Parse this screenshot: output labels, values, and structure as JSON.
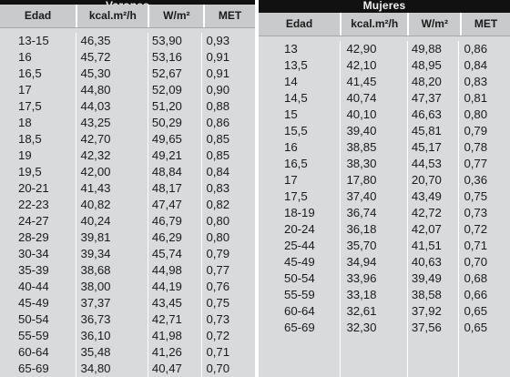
{
  "varones": {
    "title": "Varones",
    "headers": [
      "Edad",
      "kcal.m²/h",
      "W/m²",
      "MET"
    ],
    "rows": [
      [
        "13-15",
        "46,35",
        "53,90",
        "0,93"
      ],
      [
        "16",
        "45,72",
        "53,16",
        "0,91"
      ],
      [
        "16,5",
        "45,30",
        "52,67",
        "0,91"
      ],
      [
        "17",
        "44,80",
        "52,09",
        "0,90"
      ],
      [
        "17,5",
        "44,03",
        "51,20",
        "0,88"
      ],
      [
        "18",
        "43,25",
        "50,29",
        "0,86"
      ],
      [
        "18,5",
        "42,70",
        "49,65",
        "0,85"
      ],
      [
        "19",
        "42,32",
        "49,21",
        "0,85"
      ],
      [
        "19,5",
        "42,00",
        "48,84",
        "0,84"
      ],
      [
        "20-21",
        "41,43",
        "48,17",
        "0,83"
      ],
      [
        "22-23",
        "40,82",
        "47,47",
        "0,82"
      ],
      [
        "24-27",
        "40,24",
        "46,79",
        "0,80"
      ],
      [
        "28-29",
        "39,81",
        "46,29",
        "0,80"
      ],
      [
        "30-34",
        "39,34",
        "45,74",
        "0,79"
      ],
      [
        "35-39",
        "38,68",
        "44,98",
        "0,77"
      ],
      [
        "40-44",
        "38,00",
        "44,19",
        "0,76"
      ],
      [
        "45-49",
        "37,37",
        "43,45",
        "0,75"
      ],
      [
        "50-54",
        "36,73",
        "42,71",
        "0,73"
      ],
      [
        "55-59",
        "36,10",
        "41,98",
        "0,72"
      ],
      [
        "60-64",
        "35,48",
        "41,26",
        "0,71"
      ],
      [
        "65-69",
        "34,80",
        "40,47",
        "0,70"
      ]
    ]
  },
  "mujeres": {
    "title": "Mujeres",
    "headers": [
      "Edad",
      "kcal.m²/h",
      "W/m²",
      "MET"
    ],
    "rows": [
      [
        "13",
        "42,90",
        "49,88",
        "0,86"
      ],
      [
        "13,5",
        "42,10",
        "48,95",
        "0,84"
      ],
      [
        "14",
        "41,45",
        "48,20",
        "0,83"
      ],
      [
        "14,5",
        "40,74",
        "47,37",
        "0,81"
      ],
      [
        "15",
        "40,10",
        "46,63",
        "0,80"
      ],
      [
        "15,5",
        "39,40",
        "45,81",
        "0,79"
      ],
      [
        "16",
        "38,85",
        "45,17",
        "0,78"
      ],
      [
        "16,5",
        "38,30",
        "44,53",
        "0,77"
      ],
      [
        "17",
        "17,80",
        "20,70",
        "0,36"
      ],
      [
        "17,5",
        "37,40",
        "43,49",
        "0,75"
      ],
      [
        "18-19",
        "36,74",
        "42,72",
        "0,73"
      ],
      [
        "20-24",
        "36,18",
        "42,07",
        "0,72"
      ],
      [
        "25-44",
        "35,70",
        "41,51",
        "0,71"
      ],
      [
        "45-49",
        "34,94",
        "40,63",
        "0,70"
      ],
      [
        "50-54",
        "33,96",
        "39,49",
        "0,68"
      ],
      [
        "55-59",
        "33,18",
        "38,58",
        "0,66"
      ],
      [
        "60-64",
        "32,61",
        "37,92",
        "0,65"
      ],
      [
        "65-69",
        "32,30",
        "37,56",
        "0,65"
      ]
    ]
  }
}
